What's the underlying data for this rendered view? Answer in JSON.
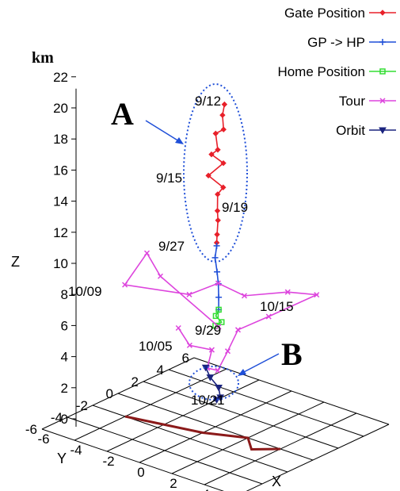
{
  "chart_data": {
    "type": "line",
    "projection": "3d",
    "zlabel": "Z",
    "xlabel": "X",
    "ylabel": "Y",
    "z_unit": "km",
    "zlim": [
      0,
      22
    ],
    "xlim": [
      -6,
      6
    ],
    "ylim": [
      -6,
      6
    ],
    "z_ticks": [
      "0",
      "2",
      "4",
      "6",
      "8",
      "10",
      "12",
      "14",
      "16",
      "18",
      "20",
      "22"
    ],
    "x_ticks": [
      "-6",
      "-4",
      "-2",
      "0",
      "2",
      "4",
      "6"
    ],
    "y_ticks": [
      "-6",
      "-4",
      "-2",
      "0",
      "2",
      "4",
      "6"
    ],
    "legend_position": "top-right",
    "legend": [
      {
        "label": "Gate Position",
        "color": "#e8202a",
        "marker": "diamond"
      },
      {
        "label": "GP -> HP",
        "color": "#1f4fd8",
        "marker": "plus"
      },
      {
        "label": "Home Position",
        "color": "#33dd33",
        "marker": "square"
      },
      {
        "label": "Tour",
        "color": "#dd44dd",
        "marker": "x"
      },
      {
        "label": "Orbit",
        "color": "#1a237e",
        "marker": "triangle-down"
      }
    ],
    "annotations": {
      "letters": [
        {
          "id": "A",
          "text": "A"
        },
        {
          "id": "B",
          "text": "B"
        }
      ],
      "dates": [
        {
          "id": "d_0912",
          "text": "9/12"
        },
        {
          "id": "d_0915",
          "text": "9/15"
        },
        {
          "id": "d_0919",
          "text": "9/19"
        },
        {
          "id": "d_0927",
          "text": "9/27"
        },
        {
          "id": "d_1009",
          "text": "10/09"
        },
        {
          "id": "d_1015",
          "text": "10/15"
        },
        {
          "id": "d_0929",
          "text": "9/29"
        },
        {
          "id": "d_1005",
          "text": "10/05"
        },
        {
          "id": "d_1021",
          "text": "10/21"
        }
      ]
    },
    "series": [
      {
        "name": "Gate Position",
        "points": [
          [
            0.4,
            0.2,
            20.8
          ],
          [
            0.2,
            0.3,
            20.0
          ],
          [
            0.5,
            0.0,
            19.3
          ],
          [
            -0.3,
            0.4,
            18.6
          ],
          [
            0.3,
            -0.2,
            18.0
          ],
          [
            -0.4,
            0.2,
            17.3
          ],
          [
            0.1,
            0.5,
            16.8
          ],
          [
            -0.2,
            -0.3,
            16.2
          ],
          [
            0.4,
            0.1,
            15.5
          ],
          [
            -0.1,
            0.3,
            14.8
          ],
          [
            0.2,
            -0.1,
            14.0
          ],
          [
            0.0,
            0.2,
            13.2
          ],
          [
            0.1,
            0.0,
            12.4
          ],
          [
            0.0,
            0.1,
            11.8
          ]
        ]
      },
      {
        "name": "GP -> HP",
        "points": [
          [
            0.0,
            0.1,
            11.6
          ],
          [
            -0.1,
            0.1,
            10.8
          ],
          [
            0.1,
            0.0,
            10.0
          ],
          [
            0.1,
            0.1,
            9.2
          ],
          [
            0.2,
            0.0,
            8.4
          ],
          [
            0.2,
            0.0,
            7.6
          ]
        ]
      },
      {
        "name": "Home Position",
        "points": [
          [
            0.2,
            0.0,
            7.6
          ],
          [
            0.1,
            -0.1,
            7.2
          ],
          [
            0.3,
            0.1,
            6.8
          ],
          [
            0.0,
            0.0,
            6.5
          ]
        ]
      },
      {
        "name": "Tour",
        "points": [
          [
            0.2,
            0.0,
            6.5
          ],
          [
            -3.0,
            -0.5,
            8.8
          ],
          [
            -5.0,
            1.0,
            9.0
          ],
          [
            -4.8,
            -1.0,
            7.8
          ],
          [
            -2.0,
            0.5,
            7.6
          ],
          [
            -1.0,
            1.5,
            8.3
          ],
          [
            1.0,
            1.0,
            8.4
          ],
          [
            2.5,
            2.5,
            8.6
          ],
          [
            3.5,
            3.5,
            8.4
          ],
          [
            2.5,
            1.0,
            7.6
          ],
          [
            1.0,
            0.5,
            6.4
          ],
          [
            0.6,
            0.2,
            5.0
          ],
          [
            0.3,
            -0.2,
            3.8
          ],
          [
            -0.5,
            0.0,
            3.6
          ],
          [
            -0.3,
            0.1,
            4.8
          ],
          [
            -1.2,
            -0.5,
            5.0
          ],
          [
            -1.5,
            -1.0,
            6.2
          ]
        ]
      },
      {
        "name": "Orbit",
        "points": [
          [
            -0.6,
            0.0,
            3.6
          ],
          [
            -0.4,
            0.1,
            3.0
          ],
          [
            0.2,
            0.0,
            2.6
          ],
          [
            0.3,
            0.0,
            2.0
          ],
          [
            0.0,
            0.1,
            1.7
          ]
        ]
      }
    ],
    "ground_track": {
      "name": "",
      "color": "#8b1a1a",
      "points": [
        [
          -4,
          -2,
          0
        ],
        [
          -2,
          -1.5,
          0
        ],
        [
          0,
          -1,
          0
        ],
        [
          2,
          0,
          0
        ],
        [
          3,
          -1,
          0
        ],
        [
          4,
          0,
          0
        ]
      ]
    }
  }
}
